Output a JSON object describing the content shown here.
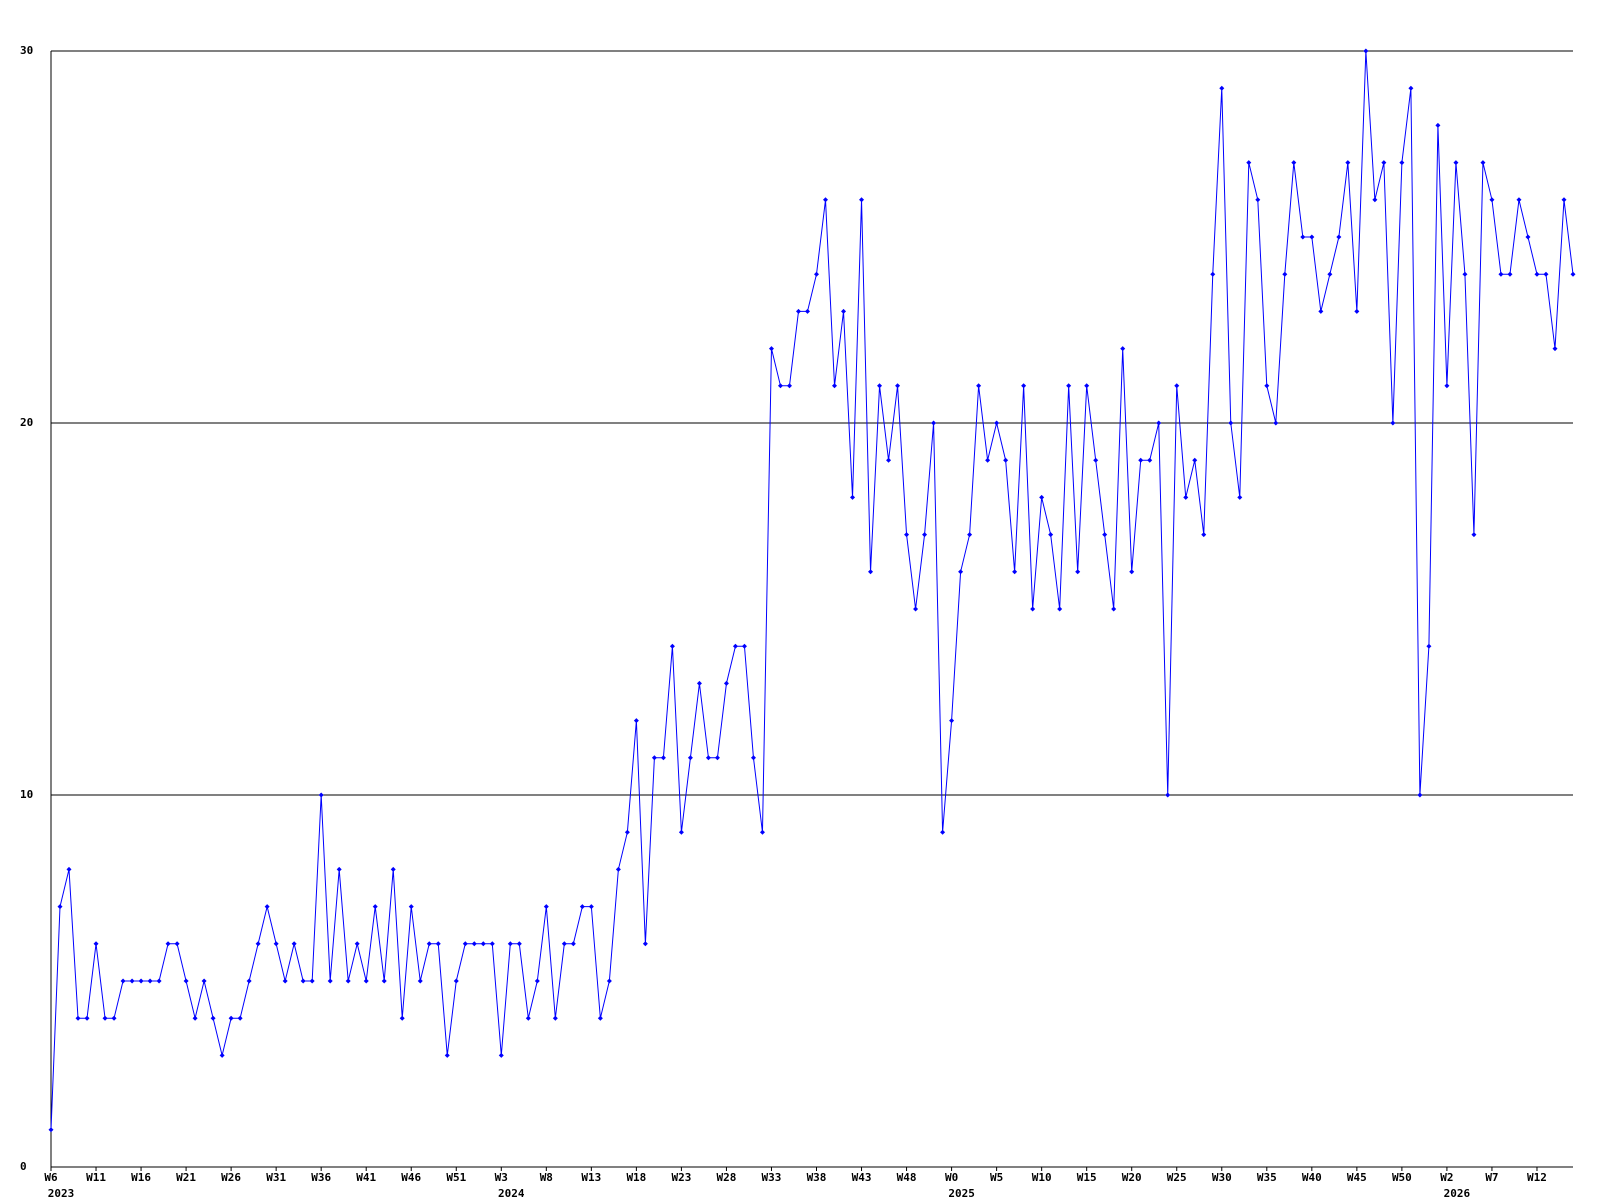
{
  "chart_data": {
    "type": "line",
    "categories": [
      "W6",
      null,
      null,
      null,
      null,
      "W11",
      null,
      null,
      null,
      null,
      "W16",
      null,
      null,
      null,
      null,
      "W21",
      null,
      null,
      null,
      null,
      "W26",
      null,
      null,
      null,
      null,
      "W31",
      null,
      null,
      null,
      null,
      "W36",
      null,
      null,
      null,
      null,
      "W41",
      null,
      null,
      null,
      null,
      "W46",
      null,
      null,
      null,
      null,
      "W51",
      null,
      null,
      null,
      null,
      "W3",
      null,
      null,
      null,
      null,
      "W8",
      null,
      null,
      null,
      null,
      "W13",
      null,
      null,
      null,
      null,
      "W18",
      null,
      null,
      null,
      null,
      "W23",
      null,
      null,
      null,
      null,
      "W28",
      null,
      null,
      null,
      null,
      "W33",
      null,
      null,
      null,
      null,
      "W38",
      null,
      null,
      null,
      null,
      "W43",
      null,
      null,
      null,
      null,
      "W48",
      null,
      null,
      null,
      null,
      "W0",
      null,
      null,
      null,
      null,
      "W5",
      null,
      null,
      null,
      null,
      "W10",
      null,
      null,
      null,
      null,
      "W15",
      null,
      null,
      null,
      null,
      "W20",
      null,
      null,
      null,
      null,
      "W25",
      null,
      null,
      null,
      null,
      "W30",
      null,
      null,
      null,
      null,
      "W35",
      null,
      null,
      null,
      null,
      "W40",
      null,
      null,
      null,
      null,
      "W45",
      null,
      null,
      null,
      null,
      "W50",
      null,
      null,
      null,
      null,
      "W2",
      null,
      null,
      null,
      null,
      "W7",
      null,
      null,
      null,
      null,
      "W12",
      null,
      null,
      null,
      null
    ],
    "year_labels": [
      {
        "index": 0,
        "label": "2023"
      },
      {
        "index": 50,
        "label": "2024"
      },
      {
        "index": 100,
        "label": "2025"
      },
      {
        "index": 155,
        "label": "2026"
      }
    ],
    "series": [
      {
        "color": "#0000ff",
        "values": [
          1,
          7,
          8,
          4,
          4,
          6,
          4,
          4,
          5,
          5,
          5,
          5,
          5,
          6,
          6,
          5,
          4,
          5,
          4,
          3,
          4,
          4,
          5,
          6,
          7,
          6,
          5,
          6,
          5,
          5,
          10,
          5,
          8,
          5,
          6,
          5,
          7,
          5,
          8,
          4,
          7,
          5,
          6,
          6,
          3,
          5,
          6,
          6,
          6,
          6,
          3,
          6,
          6,
          4,
          5,
          7,
          4,
          6,
          6,
          7,
          7,
          4,
          5,
          8,
          9,
          12,
          6,
          11,
          11,
          14,
          9,
          11,
          13,
          11,
          11,
          13,
          14,
          14,
          11,
          9,
          22,
          21,
          21,
          23,
          23,
          24,
          26,
          21,
          23,
          18,
          26,
          16,
          21,
          19,
          21,
          17,
          15,
          17,
          20,
          9,
          12,
          16,
          17,
          21,
          19,
          20,
          19,
          16,
          21,
          15,
          18,
          17,
          15,
          21,
          16,
          21,
          19,
          17,
          15,
          22,
          16,
          19,
          19,
          20,
          10,
          21,
          18,
          19,
          17,
          24,
          29,
          20,
          18,
          27,
          26,
          21,
          20,
          24,
          27,
          25,
          25,
          23,
          24,
          25,
          27,
          23,
          30,
          26,
          27,
          20,
          27,
          29,
          10,
          14,
          28,
          21,
          27,
          24,
          17,
          27,
          26,
          24,
          24,
          26,
          25,
          24,
          24,
          22,
          26,
          24
        ]
      }
    ],
    "ylim": [
      0,
      30
    ],
    "yticks": [
      0,
      10,
      20,
      30
    ],
    "grid": true
  }
}
